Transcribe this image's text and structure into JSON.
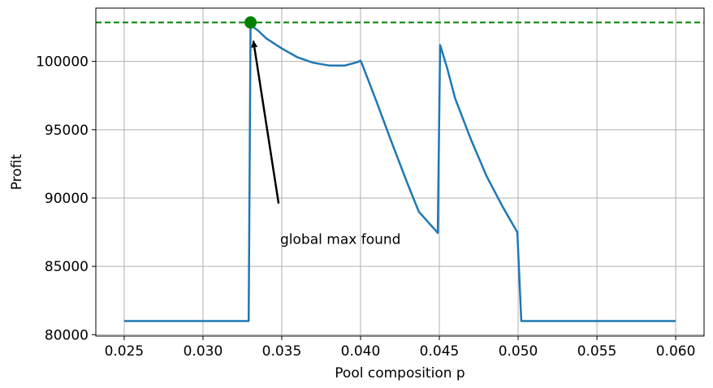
{
  "chart_data": {
    "type": "line",
    "title": "",
    "xlabel": "Pool composition p",
    "ylabel": "Profit",
    "xlim": [
      0.0232,
      0.0618
    ],
    "ylim": [
      79900,
      103900
    ],
    "grid": true,
    "x_ticks": [
      "0.025",
      "0.030",
      "0.035",
      "0.040",
      "0.045",
      "0.050",
      "0.055",
      "0.060"
    ],
    "y_ticks": [
      "80000",
      "85000",
      "90000",
      "95000",
      "100000"
    ],
    "series": [
      {
        "color": "#1f77b4",
        "x": [
          0.025,
          0.0329,
          0.03302,
          0.0331,
          0.0335,
          0.034,
          0.035,
          0.036,
          0.037,
          0.038,
          0.039,
          0.0395,
          0.0398,
          0.04,
          0.0401,
          0.0405,
          0.041,
          0.042,
          0.043,
          0.0437,
          0.0449,
          0.04505,
          0.0455,
          0.046,
          0.047,
          0.048,
          0.049,
          0.04995,
          0.0502,
          0.06
        ],
        "y": [
          81000,
          81000,
          102850,
          102600,
          102250,
          101700,
          100950,
          100300,
          99900,
          99700,
          99700,
          99850,
          99950,
          100050,
          99800,
          98600,
          97100,
          94000,
          91000,
          89000,
          87450,
          101200,
          99500,
          97300,
          94300,
          91600,
          89400,
          87500,
          81000,
          81000
        ]
      }
    ],
    "reference_line": {
      "y": 102850,
      "color": "#008000",
      "style": "dashed"
    },
    "marker": {
      "x": 0.03302,
      "y": 102850,
      "color": "#008000"
    },
    "annotation": {
      "text": "global max found",
      "text_at": [
        0.0349,
        87000
      ],
      "arrow_from": [
        0.0348,
        89600
      ],
      "arrow_to": [
        0.0332,
        101500
      ]
    }
  }
}
